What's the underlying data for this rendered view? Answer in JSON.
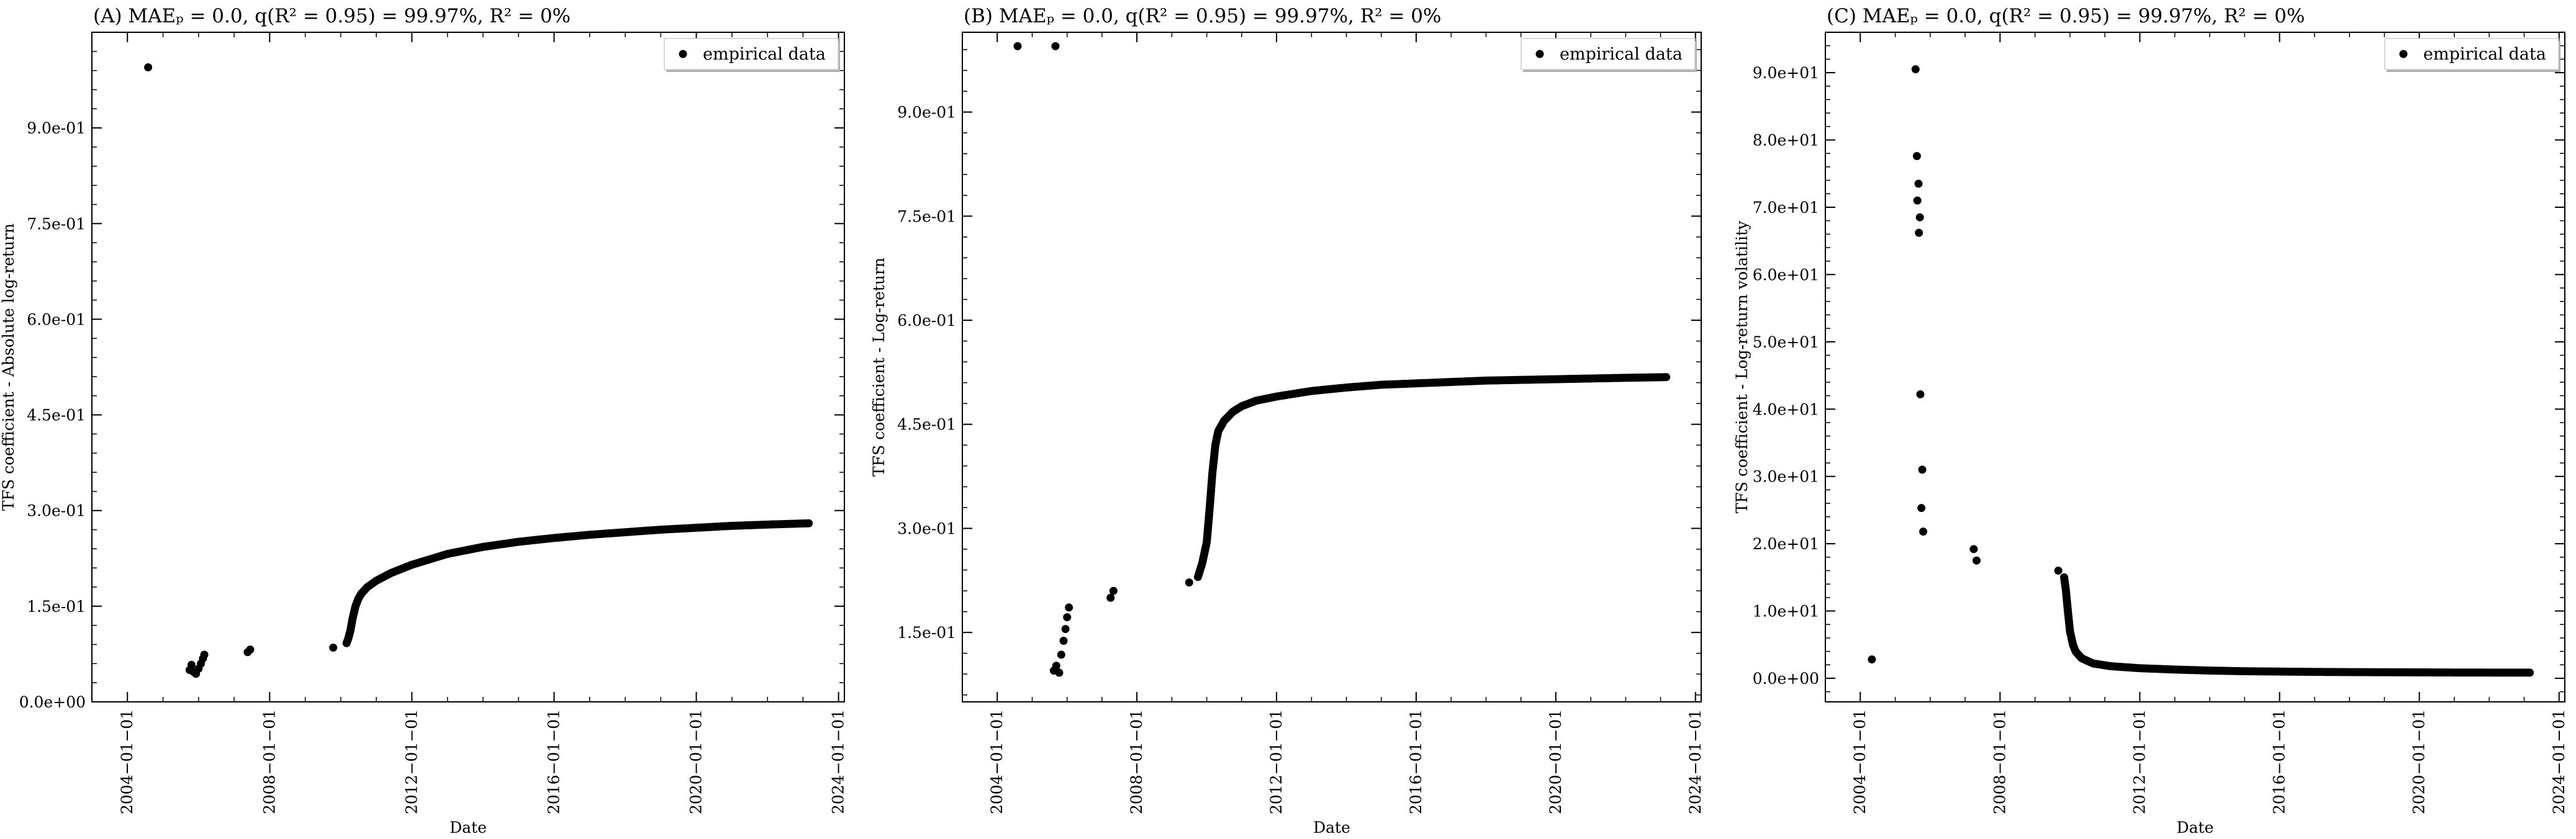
{
  "chart_data": [
    {
      "type": "scatter",
      "title": "(A) MAEₚ = 0.0, q(R² = 0.95) = 99.97%, R² = 0%",
      "xlabel": "Date",
      "ylabel": "TFS coefficient - Absolute log-return",
      "x_ticks": [
        "2004−01−01",
        "2008−01−01",
        "2012−01−01",
        "2016−01−01",
        "2020−01−01",
        "2024−01−01"
      ],
      "y_ticks": [
        "0.0e+00",
        "1.5e-01",
        "3.0e-01",
        "4.5e-01",
        "6.0e-01",
        "7.5e-01",
        "9.0e-01"
      ],
      "ylim": [
        0,
        1.05
      ],
      "grid": false,
      "legend": {
        "position": "top-right",
        "entries": [
          "empirical data"
        ]
      },
      "series": [
        {
          "name": "empirical data",
          "color": "#000000",
          "points": [
            {
              "x": "2004-08-01",
              "y": 0.995
            },
            {
              "x": "2005-10-01",
              "y": 0.05
            },
            {
              "x": "2005-10-20",
              "y": 0.058
            },
            {
              "x": "2005-11-10",
              "y": 0.047
            },
            {
              "x": "2005-12-05",
              "y": 0.044
            },
            {
              "x": "2006-01-01",
              "y": 0.052
            },
            {
              "x": "2006-01-25",
              "y": 0.06
            },
            {
              "x": "2006-02-15",
              "y": 0.068
            },
            {
              "x": "2006-03-01",
              "y": 0.074
            },
            {
              "x": "2007-05-20",
              "y": 0.078
            },
            {
              "x": "2007-06-15",
              "y": 0.082
            },
            {
              "x": "2009-10-15",
              "y": 0.085
            }
          ],
          "curve": [
            [
              "2010-03-01",
              0.092
            ],
            [
              "2010-03-20",
              0.1
            ],
            [
              "2010-04-10",
              0.112
            ],
            [
              "2010-05-01",
              0.13
            ],
            [
              "2010-06-01",
              0.15
            ],
            [
              "2010-07-01",
              0.162
            ],
            [
              "2010-08-01",
              0.17
            ],
            [
              "2010-10-01",
              0.18
            ],
            [
              "2011-01-01",
              0.19
            ],
            [
              "2011-06-01",
              0.202
            ],
            [
              "2012-01-01",
              0.215
            ],
            [
              "2013-01-01",
              0.232
            ],
            [
              "2014-01-01",
              0.243
            ],
            [
              "2015-01-01",
              0.251
            ],
            [
              "2016-01-01",
              0.257
            ],
            [
              "2017-01-01",
              0.262
            ],
            [
              "2018-01-01",
              0.266
            ],
            [
              "2019-01-01",
              0.27
            ],
            [
              "2020-01-01",
              0.273
            ],
            [
              "2021-01-01",
              0.276
            ],
            [
              "2022-01-01",
              0.278
            ],
            [
              "2023-03-01",
              0.28
            ]
          ]
        }
      ]
    },
    {
      "type": "scatter",
      "title": "(B) MAEₚ = 0.0, q(R² = 0.95) = 99.97%, R² = 0%",
      "xlabel": "Date",
      "ylabel": "TFS coefficient - Log-return",
      "x_ticks": [
        "2004−01−01",
        "2008−01−01",
        "2012−01−01",
        "2016−01−01",
        "2020−01−01",
        "2024−01−01"
      ],
      "y_ticks": [
        "1.5e-01",
        "3.0e-01",
        "4.5e-01",
        "6.0e-01",
        "7.5e-01",
        "9.0e-01"
      ],
      "ylim": [
        0.05,
        1.015
      ],
      "grid": false,
      "legend": {
        "position": "top-right",
        "entries": [
          "empirical data"
        ]
      },
      "series": [
        {
          "name": "empirical data",
          "color": "#000000",
          "points": [
            {
              "x": "2004-08-01",
              "y": 0.995
            },
            {
              "x": "2005-09-01",
              "y": 0.995
            },
            {
              "x": "2005-08-15",
              "y": 0.095
            },
            {
              "x": "2005-09-10",
              "y": 0.102
            },
            {
              "x": "2005-10-10",
              "y": 0.092
            },
            {
              "x": "2005-11-01",
              "y": 0.118
            },
            {
              "x": "2005-11-25",
              "y": 0.138
            },
            {
              "x": "2005-12-15",
              "y": 0.155
            },
            {
              "x": "2006-01-01",
              "y": 0.172
            },
            {
              "x": "2006-01-20",
              "y": 0.186
            },
            {
              "x": "2007-04-01",
              "y": 0.2
            },
            {
              "x": "2007-05-01",
              "y": 0.21
            },
            {
              "x": "2009-07-01",
              "y": 0.222
            }
          ],
          "curve": [
            [
              "2009-10-01",
              0.23
            ],
            [
              "2009-11-15",
              0.25
            ],
            [
              "2010-01-01",
              0.28
            ],
            [
              "2010-02-01",
              0.33
            ],
            [
              "2010-03-01",
              0.38
            ],
            [
              "2010-04-01",
              0.42
            ],
            [
              "2010-05-01",
              0.44
            ],
            [
              "2010-07-01",
              0.455
            ],
            [
              "2010-10-01",
              0.468
            ],
            [
              "2011-01-01",
              0.476
            ],
            [
              "2011-06-01",
              0.484
            ],
            [
              "2012-01-01",
              0.49
            ],
            [
              "2013-01-01",
              0.498
            ],
            [
              "2014-01-01",
              0.503
            ],
            [
              "2015-01-01",
              0.507
            ],
            [
              "2016-01-01",
              0.509
            ],
            [
              "2017-01-01",
              0.511
            ],
            [
              "2018-01-01",
              0.513
            ],
            [
              "2019-01-01",
              0.514
            ],
            [
              "2020-01-01",
              0.515
            ],
            [
              "2021-01-01",
              0.516
            ],
            [
              "2022-01-01",
              0.517
            ],
            [
              "2023-03-01",
              0.518
            ]
          ]
        }
      ]
    },
    {
      "type": "scatter",
      "title": "(C) MAEₚ = 0.0, q(R² = 0.95) = 99.97%, R² = 0%",
      "xlabel": "Date",
      "ylabel": "TFS coefficient - Log-return volatility",
      "x_ticks": [
        "2004−01−01",
        "2008−01−01",
        "2012−01−01",
        "2016−01−01",
        "2020−01−01",
        "2024−01−01"
      ],
      "y_ticks": [
        "0.0e+00",
        "1.0e+01",
        "2.0e+01",
        "3.0e+01",
        "4.0e+01",
        "5.0e+01",
        "6.0e+01",
        "7.0e+01",
        "8.0e+01",
        "9.0e+01"
      ],
      "ylim": [
        -3.5,
        96
      ],
      "grid": false,
      "legend": {
        "position": "top-right",
        "entries": [
          "empirical data"
        ]
      },
      "series": [
        {
          "name": "empirical data",
          "color": "#000000",
          "points": [
            {
              "x": "2004-05-01",
              "y": 2.8
            },
            {
              "x": "2005-08-01",
              "y": 90.5
            },
            {
              "x": "2005-08-15",
              "y": 77.6
            },
            {
              "x": "2005-09-01",
              "y": 73.5
            },
            {
              "x": "2005-08-20",
              "y": 71.0
            },
            {
              "x": "2005-09-15",
              "y": 68.5
            },
            {
              "x": "2005-09-05",
              "y": 66.2
            },
            {
              "x": "2005-09-20",
              "y": 42.2
            },
            {
              "x": "2005-10-10",
              "y": 31.0
            },
            {
              "x": "2005-10-01",
              "y": 25.3
            },
            {
              "x": "2005-10-20",
              "y": 21.8
            },
            {
              "x": "2007-04-01",
              "y": 19.2
            },
            {
              "x": "2007-05-01",
              "y": 17.5
            },
            {
              "x": "2009-09-01",
              "y": 16.0
            }
          ],
          "curve": [
            [
              "2009-11-01",
              15.0
            ],
            [
              "2009-11-20",
              13.0
            ],
            [
              "2009-12-10",
              10.0
            ],
            [
              "2010-01-01",
              7.0
            ],
            [
              "2010-02-01",
              5.0
            ],
            [
              "2010-03-01",
              4.0
            ],
            [
              "2010-05-01",
              3.0
            ],
            [
              "2010-09-01",
              2.2
            ],
            [
              "2011-03-01",
              1.8
            ],
            [
              "2012-01-01",
              1.5
            ],
            [
              "2013-01-01",
              1.3
            ],
            [
              "2014-01-01",
              1.15
            ],
            [
              "2015-01-01",
              1.05
            ],
            [
              "2016-01-01",
              1.0
            ],
            [
              "2017-01-01",
              0.95
            ],
            [
              "2018-01-01",
              0.92
            ],
            [
              "2019-01-01",
              0.9
            ],
            [
              "2020-01-01",
              0.88
            ],
            [
              "2021-01-01",
              0.86
            ],
            [
              "2022-01-01",
              0.85
            ],
            [
              "2023-03-01",
              0.84
            ]
          ]
        }
      ]
    }
  ]
}
